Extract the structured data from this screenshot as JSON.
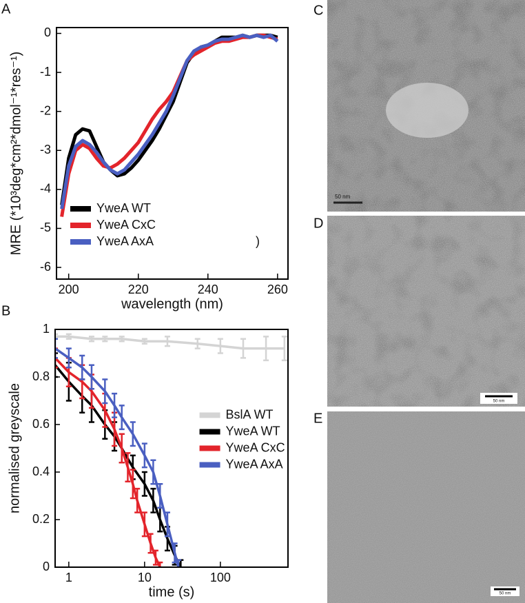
{
  "chart_data": [
    {
      "type": "line",
      "panel_label": "A",
      "x_label": "wavelength (nm)",
      "y_label": "MRE (*10³deg*cm²*dmol⁻¹*res⁻¹)",
      "x": [
        198,
        200,
        202,
        204,
        206,
        208,
        210,
        212,
        214,
        216,
        218,
        220,
        222,
        224,
        226,
        228,
        230,
        232,
        234,
        236,
        238,
        240,
        242,
        244,
        246,
        248,
        250,
        252,
        254,
        256,
        258,
        260
      ],
      "xlim": [
        196.5,
        263
      ],
      "xticks": [
        200,
        220,
        240,
        260
      ],
      "ylim": [
        -6.3,
        0.15
      ],
      "yticks": [
        0,
        -1,
        -2,
        -3,
        -4,
        -5,
        -6
      ],
      "grid": false,
      "legend": "lower left",
      "annotations": [
        ")"
      ],
      "series": [
        {
          "name": "YweA WT",
          "color": "#000000",
          "values": [
            -4.4,
            -3.2,
            -2.6,
            -2.45,
            -2.5,
            -2.9,
            -3.3,
            -3.5,
            -3.65,
            -3.6,
            -3.45,
            -3.25,
            -3.0,
            -2.75,
            -2.45,
            -2.1,
            -1.75,
            -1.25,
            -0.75,
            -0.5,
            -0.35,
            -0.3,
            -0.2,
            -0.1,
            -0.1,
            -0.1,
            -0.05,
            -0.1,
            -0.05,
            -0.05,
            -0.05,
            -0.1
          ]
        },
        {
          "name": "YweA CxC",
          "color": "#e3242b",
          "values": [
            -4.7,
            -3.6,
            -3.0,
            -2.85,
            -2.95,
            -3.2,
            -3.4,
            -3.45,
            -3.35,
            -3.2,
            -3.0,
            -2.8,
            -2.5,
            -2.2,
            -1.95,
            -1.75,
            -1.5,
            -1.1,
            -0.7,
            -0.55,
            -0.45,
            -0.35,
            -0.25,
            -0.2,
            -0.2,
            -0.15,
            -0.1,
            -0.1,
            -0.05,
            -0.05,
            -0.1,
            -0.15
          ]
        },
        {
          "name": "YweA AxA",
          "color": "#4a5fc1",
          "values": [
            -4.5,
            -3.4,
            -2.9,
            -2.75,
            -2.85,
            -3.05,
            -3.3,
            -3.5,
            -3.6,
            -3.5,
            -3.3,
            -3.1,
            -2.85,
            -2.6,
            -2.3,
            -2.0,
            -1.6,
            -1.15,
            -0.7,
            -0.45,
            -0.35,
            -0.3,
            -0.2,
            -0.15,
            -0.15,
            -0.1,
            -0.05,
            -0.1,
            -0.05,
            -0.1,
            -0.05,
            -0.2
          ]
        }
      ]
    },
    {
      "type": "errorbar",
      "panel_label": "B",
      "x_label": "time (s)",
      "y_label": "normalised greyscale",
      "xlog": true,
      "xlim": [
        0.66,
        780
      ],
      "xticks": [
        1,
        10,
        100
      ],
      "ylim": [
        0,
        1
      ],
      "yticks": [
        0,
        0.2,
        0.4,
        0.6,
        0.8,
        1
      ],
      "grid": false,
      "legend": "center right",
      "series": [
        {
          "name": "BslA WT",
          "color": "#d4d4d4",
          "x": [
            0.66,
            1,
            2,
            3,
            5,
            10,
            20,
            50,
            100,
            200,
            400,
            700
          ],
          "values": [
            0.97,
            0.97,
            0.96,
            0.96,
            0.96,
            0.95,
            0.95,
            0.94,
            0.93,
            0.92,
            0.92,
            0.92
          ],
          "errors": [
            0.01,
            0.01,
            0.01,
            0.01,
            0.01,
            0.01,
            0.02,
            0.02,
            0.03,
            0.04,
            0.05,
            0.05
          ]
        },
        {
          "name": "YweA WT",
          "color": "#000000",
          "x": [
            0.66,
            1,
            1.5,
            2,
            3,
            4,
            5,
            7,
            10,
            13,
            16,
            20,
            25,
            30
          ],
          "values": [
            0.85,
            0.78,
            0.72,
            0.68,
            0.6,
            0.55,
            0.5,
            0.42,
            0.35,
            0.28,
            0.2,
            0.12,
            0.05,
            0
          ],
          "errors": [
            0.05,
            0.08,
            0.07,
            0.07,
            0.06,
            0.06,
            0.06,
            0.05,
            0.05,
            0.05,
            0.05,
            0.05,
            0.04,
            0.03
          ]
        },
        {
          "name": "YweA CxC",
          "color": "#e3242b",
          "x": [
            0.66,
            1,
            1.5,
            2,
            3,
            4,
            5,
            6,
            7,
            8,
            10,
            12,
            14,
            16
          ],
          "values": [
            0.88,
            0.82,
            0.78,
            0.74,
            0.66,
            0.58,
            0.5,
            0.42,
            0.35,
            0.28,
            0.18,
            0.1,
            0.04,
            0
          ],
          "errors": [
            0.04,
            0.06,
            0.07,
            0.07,
            0.07,
            0.07,
            0.06,
            0.06,
            0.06,
            0.05,
            0.05,
            0.04,
            0.03,
            0.02
          ]
        },
        {
          "name": "YweA AxA",
          "color": "#4a5fc1",
          "x": [
            0.66,
            1,
            1.5,
            2,
            3,
            4,
            5,
            7,
            10,
            13,
            16,
            20,
            25,
            28
          ],
          "values": [
            0.92,
            0.88,
            0.84,
            0.8,
            0.74,
            0.68,
            0.63,
            0.56,
            0.47,
            0.4,
            0.3,
            0.18,
            0.06,
            0
          ],
          "errors": [
            0.04,
            0.04,
            0.05,
            0.05,
            0.05,
            0.05,
            0.05,
            0.05,
            0.05,
            0.05,
            0.05,
            0.05,
            0.04,
            0.03
          ]
        }
      ]
    }
  ],
  "panels": [
    {
      "label": "C",
      "scale_bar": "50 nm"
    },
    {
      "label": "D",
      "scale_bar": "50 nm"
    },
    {
      "label": "E",
      "scale_bar": "50 nm"
    }
  ]
}
